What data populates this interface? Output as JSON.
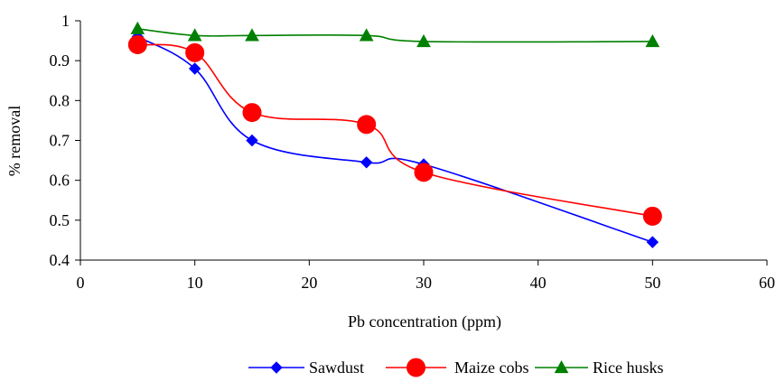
{
  "chart_data": {
    "type": "line",
    "title": "",
    "xlabel": "Pb concentration (ppm)",
    "ylabel": "% removal",
    "xlim": [
      0,
      60
    ],
    "ylim": [
      0.4,
      1
    ],
    "x_ticks": [
      "0",
      "10",
      "20",
      "30",
      "40",
      "50",
      "60"
    ],
    "y_ticks": [
      "0.4",
      "0.5",
      "0.6",
      "0.7",
      "0.8",
      "0.9",
      "1"
    ],
    "x_tick_values": [
      0,
      10,
      20,
      30,
      40,
      50,
      60
    ],
    "y_tick_values": [
      0.4,
      0.5,
      0.6,
      0.7,
      0.8,
      0.9,
      1.0
    ],
    "grid": false,
    "legend_position": "bottom",
    "series": [
      {
        "name": "Sawdust",
        "color": "#0000ff",
        "marker": "diamond",
        "x": [
          5,
          10,
          15,
          25,
          30,
          50
        ],
        "y": [
          0.96,
          0.88,
          0.7,
          0.645,
          0.64,
          0.445
        ]
      },
      {
        "name": "Maize cobs",
        "color": "#ff0000",
        "marker": "circle",
        "x": [
          5,
          10,
          15,
          25,
          30,
          50
        ],
        "y": [
          0.94,
          0.92,
          0.77,
          0.74,
          0.62,
          0.51
        ]
      },
      {
        "name": "Rice husks",
        "color": "#008000",
        "marker": "triangle",
        "x": [
          5,
          10,
          15,
          25,
          30,
          50
        ],
        "y": [
          0.98,
          0.963,
          0.963,
          0.963,
          0.948,
          0.948
        ]
      }
    ]
  }
}
